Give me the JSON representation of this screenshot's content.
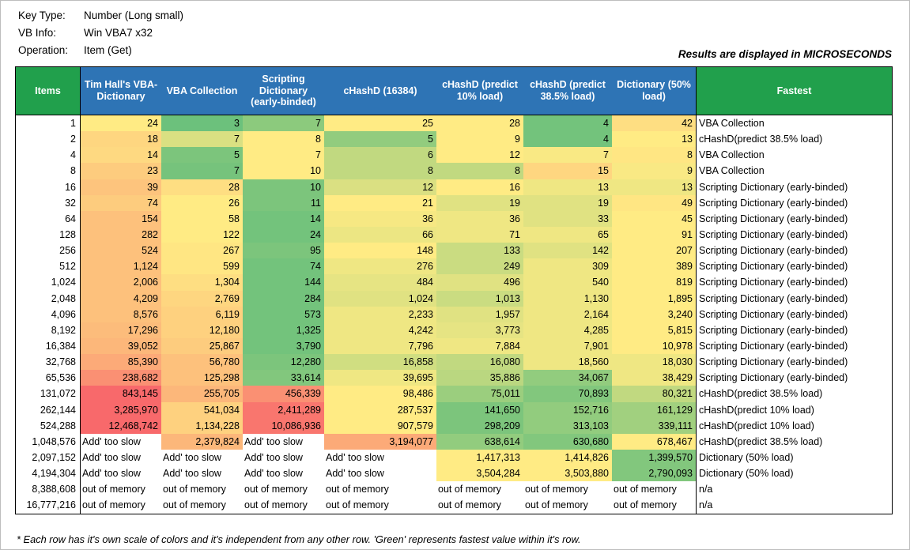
{
  "page": {
    "info": {
      "rows": [
        {
          "label": "Key Type:",
          "value": "Number (Long small)"
        },
        {
          "label": "VB Info:",
          "value": "Win VBA7 x32"
        },
        {
          "label": "Operation:",
          "value": "Item (Get)"
        }
      ],
      "units_note": "Results are displayed in MICROSECONDS",
      "footnote": "* Each row has it's own scale of colors and it's independent from any other row. 'Green' represents fastest value within it's row."
    },
    "colors": {
      "header_green": "#21A04C",
      "header_blue": "#2E74B5",
      "scale_green": "#63BE7B",
      "scale_yellow": "#FFEB84",
      "scale_red": "#F8696B"
    }
  },
  "chart_data": {
    "type": "heatmap",
    "units": "microseconds",
    "columns": [
      "Items",
      "Tim Hall's VBA-Dictionary",
      "VBA Collection",
      "Scripting Dictionary (early-binded)",
      "cHashD (16384)",
      "cHashD (predict 10% load)",
      "cHashD (predict 38.5% load)",
      "Dictionary (50% load)",
      "Fastest"
    ],
    "rows": [
      {
        "items": "1",
        "values": [
          "24",
          "3",
          "7",
          "25",
          "28",
          "4",
          "42"
        ],
        "heat": [
          0.5,
          0.03,
          0.13,
          0.5,
          0.5,
          0.05,
          0.55
        ],
        "fastest": "VBA Collection"
      },
      {
        "items": "2",
        "values": [
          "18",
          "7",
          "8",
          "5",
          "9",
          "4",
          "13"
        ],
        "heat": [
          0.58,
          0.38,
          0.5,
          0.15,
          0.5,
          0.05,
          0.5
        ],
        "fastest": "cHashD(predict 38.5% load)"
      },
      {
        "items": "4",
        "values": [
          "14",
          "5",
          "7",
          "6",
          "12",
          "7",
          "8"
        ],
        "heat": [
          0.57,
          0.08,
          0.5,
          0.3,
          0.5,
          0.48,
          0.52
        ],
        "fastest": "VBA Collection"
      },
      {
        "items": "8",
        "values": [
          "23",
          "7",
          "10",
          "8",
          "8",
          "15",
          "9"
        ],
        "heat": [
          0.62,
          0.06,
          0.5,
          0.3,
          0.3,
          0.58,
          0.48
        ],
        "fastest": "VBA Collection"
      },
      {
        "items": "16",
        "values": [
          "39",
          "28",
          "10",
          "12",
          "16",
          "13",
          "13"
        ],
        "heat": [
          0.65,
          0.55,
          0.08,
          0.38,
          0.5,
          0.45,
          0.45
        ],
        "fastest": "Scripting Dictionary (early-binded)"
      },
      {
        "items": "32",
        "values": [
          "74",
          "26",
          "11",
          "21",
          "19",
          "19",
          "49"
        ],
        "heat": [
          0.62,
          0.5,
          0.08,
          0.5,
          0.4,
          0.4,
          0.52
        ],
        "fastest": "Scripting Dictionary (early-binded)"
      },
      {
        "items": "64",
        "values": [
          "154",
          "58",
          "14",
          "36",
          "36",
          "33",
          "45"
        ],
        "heat": [
          0.66,
          0.5,
          0.05,
          0.47,
          0.45,
          0.4,
          0.5
        ],
        "fastest": "Scripting Dictionary (early-binded)"
      },
      {
        "items": "128",
        "values": [
          "282",
          "122",
          "24",
          "66",
          "71",
          "65",
          "91"
        ],
        "heat": [
          0.66,
          0.5,
          0.05,
          0.44,
          0.45,
          0.45,
          0.5
        ],
        "fastest": "Scripting Dictionary (early-binded)"
      },
      {
        "items": "256",
        "values": [
          "524",
          "267",
          "95",
          "148",
          "133",
          "142",
          "207"
        ],
        "heat": [
          0.66,
          0.52,
          0.08,
          0.5,
          0.33,
          0.4,
          0.5
        ],
        "fastest": "Scripting Dictionary (early-binded)"
      },
      {
        "items": "512",
        "values": [
          "1,124",
          "599",
          "74",
          "276",
          "249",
          "309",
          "389"
        ],
        "heat": [
          0.66,
          0.52,
          0.05,
          0.45,
          0.33,
          0.45,
          0.5
        ],
        "fastest": "Scripting Dictionary (early-binded)"
      },
      {
        "items": "1,024",
        "values": [
          "2,006",
          "1,304",
          "144",
          "484",
          "496",
          "540",
          "819"
        ],
        "heat": [
          0.66,
          0.55,
          0.05,
          0.42,
          0.4,
          0.45,
          0.5
        ],
        "fastest": "Scripting Dictionary (early-binded)"
      },
      {
        "items": "2,048",
        "values": [
          "4,209",
          "2,769",
          "284",
          "1,024",
          "1,013",
          "1,130",
          "1,895"
        ],
        "heat": [
          0.66,
          0.58,
          0.05,
          0.4,
          0.33,
          0.45,
          0.5
        ],
        "fastest": "Scripting Dictionary (early-binded)"
      },
      {
        "items": "4,096",
        "values": [
          "8,576",
          "6,119",
          "573",
          "2,233",
          "1,957",
          "2,164",
          "3,240"
        ],
        "heat": [
          0.66,
          0.6,
          0.05,
          0.45,
          0.4,
          0.45,
          0.5
        ],
        "fastest": "Scripting Dictionary (early-binded)"
      },
      {
        "items": "8,192",
        "values": [
          "17,296",
          "12,180",
          "1,325",
          "4,242",
          "3,773",
          "4,285",
          "5,815"
        ],
        "heat": [
          0.68,
          0.6,
          0.05,
          0.45,
          0.42,
          0.45,
          0.5
        ],
        "fastest": "Scripting Dictionary (early-binded)"
      },
      {
        "items": "16,384",
        "values": [
          "39,052",
          "25,867",
          "3,790",
          "7,796",
          "7,884",
          "7,901",
          "10,978"
        ],
        "heat": [
          0.7,
          0.62,
          0.05,
          0.45,
          0.45,
          0.45,
          0.5
        ],
        "fastest": "Scripting Dictionary (early-binded)"
      },
      {
        "items": "32,768",
        "values": [
          "85,390",
          "56,780",
          "12,280",
          "16,858",
          "16,080",
          "18,560",
          "18,030"
        ],
        "heat": [
          0.75,
          0.66,
          0.08,
          0.35,
          0.3,
          0.45,
          0.45
        ],
        "fastest": "Scripting Dictionary (early-binded)"
      },
      {
        "items": "65,536",
        "values": [
          "238,682",
          "125,298",
          "33,614",
          "39,695",
          "35,886",
          "34,067",
          "38,429"
        ],
        "heat": [
          0.85,
          0.66,
          0.1,
          0.45,
          0.28,
          0.15,
          0.45
        ],
        "fastest": "Scripting Dictionary (early-binded)"
      },
      {
        "items": "131,072",
        "values": [
          "843,145",
          "255,705",
          "456,339",
          "98,486",
          "75,011",
          "70,893",
          "80,321"
        ],
        "heat": [
          1.0,
          0.7,
          0.85,
          0.5,
          0.18,
          0.1,
          0.3
        ],
        "fastest": "cHashD(predict 38.5% load)"
      },
      {
        "items": "262,144",
        "values": [
          "3,285,970",
          "541,034",
          "2,411,289",
          "287,537",
          "141,650",
          "152,716",
          "161,129"
        ],
        "heat": [
          1.0,
          0.6,
          0.95,
          0.5,
          0.08,
          0.15,
          0.2
        ],
        "fastest": "cHashD(predict 10% load)"
      },
      {
        "items": "524,288",
        "values": [
          "12,468,742",
          "1,134,228",
          "10,086,936",
          "907,579",
          "298,209",
          "313,103",
          "339,111"
        ],
        "heat": [
          1.0,
          0.6,
          0.95,
          0.5,
          0.08,
          0.15,
          0.2
        ],
        "fastest": "cHashD(predict 10% load)"
      },
      {
        "items": "1,048,576",
        "values": [
          "Add' too slow",
          "2,379,824",
          "Add' too slow",
          "3,194,077",
          "638,614",
          "630,680",
          "678,467"
        ],
        "heat": [
          null,
          0.7,
          null,
          0.75,
          0.15,
          0.1,
          0.5
        ],
        "fastest": "cHashD(predict 38.5% load)"
      },
      {
        "items": "2,097,152",
        "values": [
          "Add' too slow",
          "Add' too slow",
          "Add' too slow",
          "Add' too slow",
          "1,417,313",
          "1,414,826",
          "1,399,570"
        ],
        "heat": [
          null,
          null,
          null,
          null,
          0.5,
          0.5,
          0.1
        ],
        "fastest": "Dictionary (50% load)"
      },
      {
        "items": "4,194,304",
        "values": [
          "Add' too slow",
          "Add' too slow",
          "Add' too slow",
          "Add' too slow",
          "3,504,284",
          "3,503,880",
          "2,790,093"
        ],
        "heat": [
          null,
          null,
          null,
          null,
          0.5,
          0.5,
          0.1
        ],
        "fastest": "Dictionary (50% load)"
      },
      {
        "items": "8,388,608",
        "values": [
          "out of memory",
          "out of memory",
          "out of memory",
          "out of memory",
          "out of memory",
          "out of memory",
          "out of memory"
        ],
        "heat": [
          null,
          null,
          null,
          null,
          null,
          null,
          null
        ],
        "fastest": "n/a"
      },
      {
        "items": "16,777,216",
        "values": [
          "out of memory",
          "out of memory",
          "out of memory",
          "out of memory",
          "out of memory",
          "out of memory",
          "out of memory"
        ],
        "heat": [
          null,
          null,
          null,
          null,
          null,
          null,
          null
        ],
        "fastest": "n/a"
      }
    ]
  }
}
